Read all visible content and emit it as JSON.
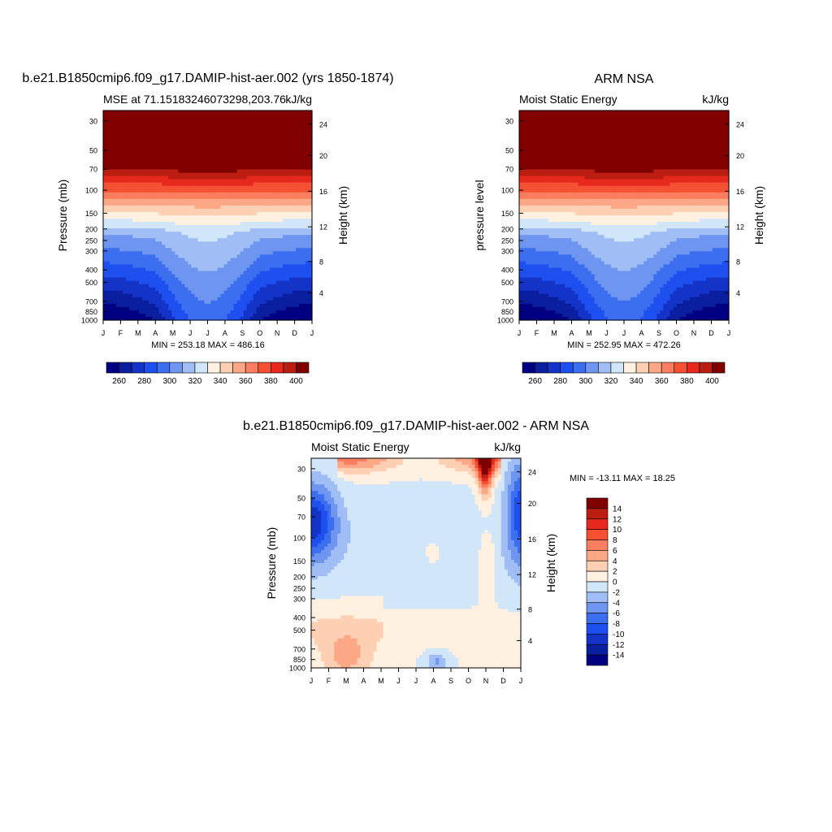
{
  "palette_mse": [
    "#000080",
    "#0a1fa0",
    "#1434c8",
    "#1e50f0",
    "#3c6ef0",
    "#6e96f0",
    "#a0bef5",
    "#d2e6fa",
    "#fff0e0",
    "#fdd0b4",
    "#fca887",
    "#fa7e5f",
    "#f55032",
    "#e6281e",
    "#bb1e10",
    "#800000"
  ],
  "palette_diff": [
    "#000080",
    "#0a1fa0",
    "#1434c8",
    "#1e50f0",
    "#3c6ef0",
    "#6e96f0",
    "#a0bef5",
    "#d2e6fa",
    "#fff0e0",
    "#fdd0b4",
    "#fca887",
    "#fa7e5f",
    "#f55032",
    "#e6281e",
    "#bb1e10",
    "#800000"
  ],
  "months": [
    "J",
    "F",
    "M",
    "A",
    "M",
    "J",
    "J",
    "A",
    "S",
    "O",
    "N",
    "D",
    "J"
  ],
  "chart_data": [
    {
      "type": "heatmap",
      "title": "b.e21.B1850cmip6.f09_g17.DAMIP-hist-aer.002 (yrs 1850-1874)",
      "left_label": "MSE at 71.15183246073298,203.76",
      "right_label": "kJ/kg",
      "ylabel": "Pressure (mb)",
      "y2label": "Height (km)",
      "yticks": [
        "30",
        "50",
        "70",
        "100",
        "150",
        "200",
        "250",
        "300",
        "400",
        "500",
        "700",
        "850",
        "1000"
      ],
      "y2ticks": [
        "24",
        "20",
        "16",
        "12",
        "8",
        "4"
      ],
      "stats": "MIN = 253.18 MAX = 486.16",
      "colorbar_labels": [
        "260",
        "280",
        "300",
        "320",
        "340",
        "360",
        "380",
        "400"
      ],
      "levels": [
        260,
        270,
        280,
        290,
        300,
        310,
        320,
        330,
        340,
        350,
        360,
        370,
        380,
        390,
        400
      ],
      "trough": 0.4,
      "max": 486.16,
      "min": 253.18
    },
    {
      "type": "heatmap",
      "title": "ARM NSA",
      "left_label": "Moist Static Energy",
      "right_label": "kJ/kg",
      "ylabel": "pressure level",
      "y2label": "Height (km)",
      "yticks": [
        "30",
        "50",
        "70",
        "100",
        "150",
        "200",
        "250",
        "300",
        "400",
        "500",
        "700",
        "850",
        "1000"
      ],
      "y2ticks": [
        "24",
        "20",
        "16",
        "12",
        "8",
        "4"
      ],
      "stats": "MIN = 252.95 MAX = 472.26",
      "colorbar_labels": [
        "260",
        "280",
        "300",
        "320",
        "340",
        "360",
        "380",
        "400"
      ],
      "levels": [
        260,
        270,
        280,
        290,
        300,
        310,
        320,
        330,
        340,
        350,
        360,
        370,
        380,
        390,
        400
      ],
      "trough": 0.4,
      "max": 472.26,
      "min": 252.95
    },
    {
      "type": "heatmap",
      "title": "b.e21.B1850cmip6.f09_g17.DAMIP-hist-aer.002 - ARM NSA",
      "left_label": "Moist Static Energy",
      "right_label": "kJ/kg",
      "ylabel": "Pressure (mb)",
      "y2label": "Height (km)",
      "yticks": [
        "30",
        "50",
        "70",
        "100",
        "150",
        "200",
        "250",
        "300",
        "400",
        "500",
        "700",
        "850",
        "1000"
      ],
      "y2ticks": [
        "24",
        "20",
        "16",
        "12",
        "8",
        "4"
      ],
      "stats": "MIN = -13.11 MAX =  18.25",
      "colorbar_labels": [
        "14",
        "12",
        "10",
        "8",
        "6",
        "4",
        "2",
        "0",
        "-2",
        "-4",
        "-6",
        "-8",
        "-10",
        "-12",
        "-14"
      ],
      "levels": [
        -14,
        -12,
        -10,
        -8,
        -6,
        -4,
        -2,
        0,
        2,
        4,
        6,
        8,
        10,
        12,
        14
      ],
      "max": 18.25,
      "min": -13.11
    }
  ]
}
